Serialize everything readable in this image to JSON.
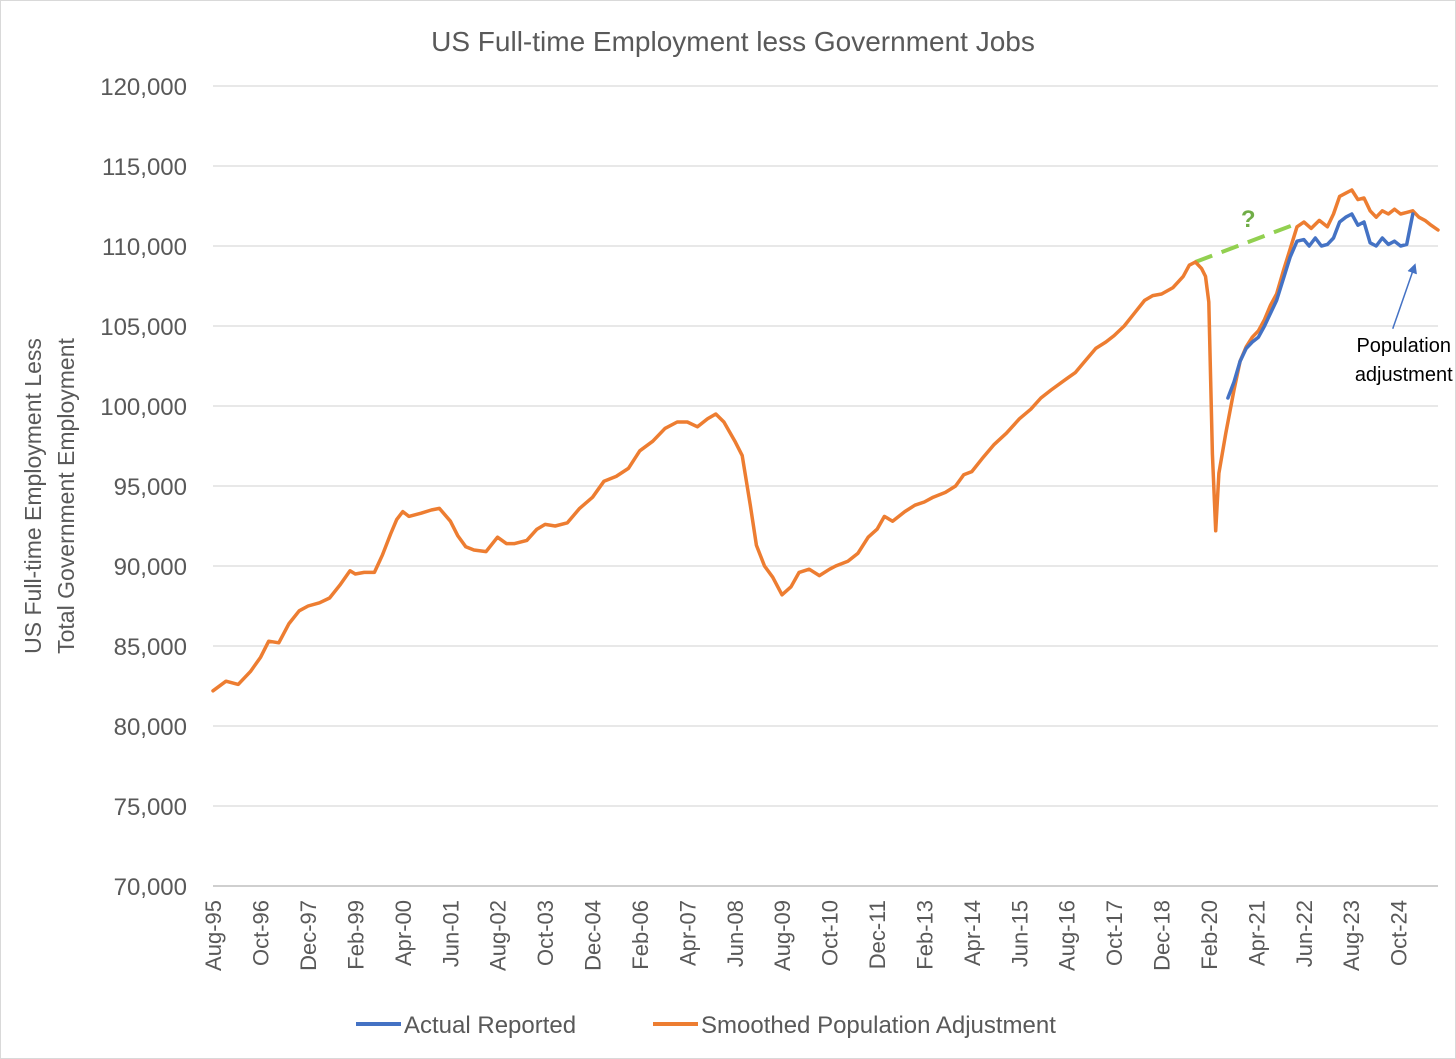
{
  "chart_data": {
    "type": "line",
    "title": "US Full-time Employment less Government Jobs",
    "ylabel_lines": [
      "US Full-time Employment Less",
      "Total Government Employment"
    ],
    "xlabel": "",
    "ylim": [
      70000,
      120000
    ],
    "yticks": [
      70000,
      75000,
      80000,
      85000,
      90000,
      95000,
      100000,
      105000,
      110000,
      115000,
      120000
    ],
    "ytick_labels": [
      "70,000",
      "75,000",
      "80,000",
      "85,000",
      "90,000",
      "95,000",
      "100,000",
      "105,000",
      "110,000",
      "115,000",
      "120,000"
    ],
    "xlim": [
      1995.58,
      2025.72
    ],
    "xticks": [
      {
        "label": "Aug-95",
        "x": 1995.58
      },
      {
        "label": "Oct-96",
        "x": 1996.75
      },
      {
        "label": "Dec-97",
        "x": 1997.92
      },
      {
        "label": "Feb-99",
        "x": 1999.08
      },
      {
        "label": "Apr-00",
        "x": 2000.25
      },
      {
        "label": "Jun-01",
        "x": 2001.42
      },
      {
        "label": "Aug-02",
        "x": 2002.58
      },
      {
        "label": "Oct-03",
        "x": 2003.75
      },
      {
        "label": "Dec-04",
        "x": 2004.92
      },
      {
        "label": "Feb-06",
        "x": 2006.08
      },
      {
        "label": "Apr-07",
        "x": 2007.25
      },
      {
        "label": "Jun-08",
        "x": 2008.42
      },
      {
        "label": "Aug-09",
        "x": 2009.58
      },
      {
        "label": "Oct-10",
        "x": 2010.75
      },
      {
        "label": "Dec-11",
        "x": 2011.92
      },
      {
        "label": "Feb-13",
        "x": 2013.08
      },
      {
        "label": "Apr-14",
        "x": 2014.25
      },
      {
        "label": "Jun-15",
        "x": 2015.42
      },
      {
        "label": "Aug-16",
        "x": 2016.58
      },
      {
        "label": "Oct-17",
        "x": 2017.75
      },
      {
        "label": "Dec-18",
        "x": 2018.92
      },
      {
        "label": "Feb-20",
        "x": 2020.08
      },
      {
        "label": "Apr-21",
        "x": 2021.25
      },
      {
        "label": "Jun-22",
        "x": 2022.42
      },
      {
        "label": "Aug-23",
        "x": 2023.58
      },
      {
        "label": "Oct-24",
        "x": 2024.75
      }
    ],
    "grid": true,
    "legend_position": "bottom",
    "series": [
      {
        "name": "Smoothed Population Adjustment",
        "color": "#ED7D31",
        "points": [
          [
            1995.58,
            82200
          ],
          [
            1995.9,
            82800
          ],
          [
            1996.2,
            82600
          ],
          [
            1996.5,
            83400
          ],
          [
            1996.75,
            84300
          ],
          [
            1996.95,
            85300
          ],
          [
            1997.2,
            85200
          ],
          [
            1997.45,
            86400
          ],
          [
            1997.7,
            87200
          ],
          [
            1997.92,
            87500
          ],
          [
            1998.2,
            87700
          ],
          [
            1998.45,
            88000
          ],
          [
            1998.7,
            88800
          ],
          [
            1998.95,
            89700
          ],
          [
            1999.08,
            89500
          ],
          [
            1999.3,
            89600
          ],
          [
            1999.55,
            89600
          ],
          [
            1999.75,
            90700
          ],
          [
            1999.95,
            92000
          ],
          [
            2000.1,
            92900
          ],
          [
            2000.25,
            93400
          ],
          [
            2000.4,
            93100
          ],
          [
            2000.7,
            93300
          ],
          [
            2000.95,
            93500
          ],
          [
            2001.15,
            93600
          ],
          [
            2001.42,
            92800
          ],
          [
            2001.6,
            91900
          ],
          [
            2001.8,
            91200
          ],
          [
            2002.0,
            91000
          ],
          [
            2002.3,
            90900
          ],
          [
            2002.58,
            91800
          ],
          [
            2002.8,
            91400
          ],
          [
            2003.0,
            91400
          ],
          [
            2003.3,
            91600
          ],
          [
            2003.55,
            92300
          ],
          [
            2003.75,
            92600
          ],
          [
            2004.0,
            92500
          ],
          [
            2004.3,
            92700
          ],
          [
            2004.6,
            93600
          ],
          [
            2004.92,
            94300
          ],
          [
            2005.2,
            95300
          ],
          [
            2005.5,
            95600
          ],
          [
            2005.8,
            96100
          ],
          [
            2006.08,
            97200
          ],
          [
            2006.4,
            97800
          ],
          [
            2006.7,
            98600
          ],
          [
            2007.0,
            99000
          ],
          [
            2007.25,
            99000
          ],
          [
            2007.5,
            98700
          ],
          [
            2007.75,
            99200
          ],
          [
            2007.95,
            99500
          ],
          [
            2008.15,
            99000
          ],
          [
            2008.42,
            97800
          ],
          [
            2008.6,
            96900
          ],
          [
            2008.8,
            93800
          ],
          [
            2008.95,
            91300
          ],
          [
            2009.15,
            90000
          ],
          [
            2009.35,
            89300
          ],
          [
            2009.58,
            88200
          ],
          [
            2009.8,
            88700
          ],
          [
            2010.0,
            89600
          ],
          [
            2010.25,
            89800
          ],
          [
            2010.5,
            89400
          ],
          [
            2010.75,
            89800
          ],
          [
            2010.9,
            90000
          ],
          [
            2011.2,
            90300
          ],
          [
            2011.45,
            90800
          ],
          [
            2011.7,
            91800
          ],
          [
            2011.92,
            92300
          ],
          [
            2012.1,
            93100
          ],
          [
            2012.3,
            92800
          ],
          [
            2012.6,
            93400
          ],
          [
            2012.85,
            93800
          ],
          [
            2013.08,
            94000
          ],
          [
            2013.3,
            94300
          ],
          [
            2013.6,
            94600
          ],
          [
            2013.85,
            95000
          ],
          [
            2014.05,
            95700
          ],
          [
            2014.25,
            95900
          ],
          [
            2014.5,
            96700
          ],
          [
            2014.8,
            97600
          ],
          [
            2015.1,
            98300
          ],
          [
            2015.42,
            99200
          ],
          [
            2015.7,
            99800
          ],
          [
            2015.95,
            100500
          ],
          [
            2016.2,
            101000
          ],
          [
            2016.58,
            101700
          ],
          [
            2016.8,
            102100
          ],
          [
            2017.0,
            102700
          ],
          [
            2017.3,
            103600
          ],
          [
            2017.55,
            104000
          ],
          [
            2017.75,
            104400
          ],
          [
            2018.0,
            105000
          ],
          [
            2018.25,
            105800
          ],
          [
            2018.5,
            106600
          ],
          [
            2018.7,
            106900
          ],
          [
            2018.92,
            107000
          ],
          [
            2019.2,
            107400
          ],
          [
            2019.45,
            108100
          ],
          [
            2019.6,
            108800
          ],
          [
            2019.75,
            109000
          ],
          [
            2019.9,
            108600
          ],
          [
            2020.0,
            108100
          ],
          [
            2020.08,
            106500
          ],
          [
            2020.17,
            97000
          ],
          [
            2020.25,
            92200
          ],
          [
            2020.33,
            95800
          ],
          [
            2020.5,
            98300
          ],
          [
            2020.7,
            101000
          ],
          [
            2020.85,
            102800
          ],
          [
            2021.0,
            103700
          ],
          [
            2021.15,
            104300
          ],
          [
            2021.3,
            104700
          ],
          [
            2021.45,
            105400
          ],
          [
            2021.6,
            106300
          ],
          [
            2021.75,
            107000
          ],
          [
            2021.92,
            108500
          ],
          [
            2022.08,
            109800
          ],
          [
            2022.25,
            111200
          ],
          [
            2022.42,
            111500
          ],
          [
            2022.6,
            111100
          ],
          [
            2022.8,
            111600
          ],
          [
            2023.0,
            111200
          ],
          [
            2023.15,
            112000
          ],
          [
            2023.3,
            113100
          ],
          [
            2023.45,
            113300
          ],
          [
            2023.6,
            113500
          ],
          [
            2023.75,
            112900
          ],
          [
            2023.9,
            113000
          ],
          [
            2024.05,
            112200
          ],
          [
            2024.2,
            111800
          ],
          [
            2024.35,
            112200
          ],
          [
            2024.5,
            112000
          ],
          [
            2024.65,
            112300
          ],
          [
            2024.8,
            112000
          ],
          [
            2024.95,
            112100
          ],
          [
            2025.1,
            112200
          ],
          [
            2025.25,
            111800
          ],
          [
            2025.4,
            111600
          ],
          [
            2025.55,
            111300
          ],
          [
            2025.72,
            111000
          ]
        ]
      },
      {
        "name": "Actual Reported",
        "color": "#4472C4",
        "points": [
          [
            2020.55,
            100500
          ],
          [
            2020.7,
            101500
          ],
          [
            2020.85,
            102800
          ],
          [
            2021.0,
            103600
          ],
          [
            2021.15,
            104000
          ],
          [
            2021.3,
            104300
          ],
          [
            2021.45,
            105000
          ],
          [
            2021.6,
            105800
          ],
          [
            2021.75,
            106600
          ],
          [
            2021.92,
            108000
          ],
          [
            2022.08,
            109300
          ],
          [
            2022.25,
            110300
          ],
          [
            2022.42,
            110400
          ],
          [
            2022.55,
            110000
          ],
          [
            2022.7,
            110500
          ],
          [
            2022.85,
            110000
          ],
          [
            2023.0,
            110100
          ],
          [
            2023.15,
            110500
          ],
          [
            2023.3,
            111500
          ],
          [
            2023.45,
            111800
          ],
          [
            2023.6,
            112000
          ],
          [
            2023.75,
            111300
          ],
          [
            2023.9,
            111500
          ],
          [
            2024.05,
            110200
          ],
          [
            2024.2,
            110000
          ],
          [
            2024.35,
            110500
          ],
          [
            2024.5,
            110100
          ],
          [
            2024.65,
            110300
          ],
          [
            2024.8,
            110000
          ],
          [
            2024.95,
            110100
          ],
          [
            2025.1,
            112000
          ]
        ]
      }
    ],
    "trend_line": {
      "color": "#92D050",
      "points": [
        [
          2019.75,
          109000
        ],
        [
          2022.25,
          111400
        ]
      ]
    },
    "annotations": [
      {
        "text": "?",
        "color": "#70AD47",
        "x": 2021.05,
        "y": 111200
      },
      {
        "text_lines": [
          "Population",
          "adjustment"
        ],
        "color": "#000000",
        "x": 2025.0,
        "y": 104200,
        "arrow_to": [
          2025.15,
          108800
        ]
      }
    ],
    "legend": [
      {
        "name": "Actual Reported",
        "color": "#4472C4"
      },
      {
        "name": "Smoothed Population Adjustment",
        "color": "#ED7D31"
      }
    ]
  }
}
